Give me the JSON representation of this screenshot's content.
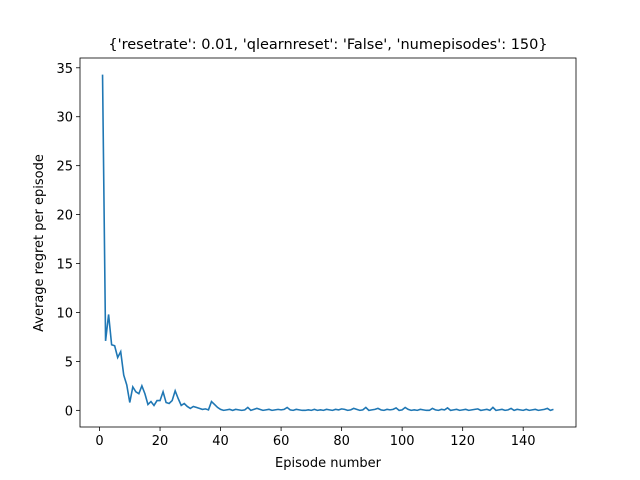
{
  "chart_data": {
    "type": "line",
    "title": "{'resetrate': 0.01, 'qlearnreset': 'False', 'numepisodes': 150}",
    "xlabel": "Episode number",
    "ylabel": "Average regret per episode",
    "x": [
      1,
      2,
      3,
      4,
      5,
      6,
      7,
      8,
      9,
      10,
      11,
      12,
      13,
      14,
      15,
      16,
      17,
      18,
      19,
      20,
      21,
      22,
      23,
      24,
      25,
      26,
      27,
      28,
      29,
      30,
      31,
      32,
      33,
      34,
      35,
      36,
      37,
      38,
      39,
      40,
      41,
      42,
      43,
      44,
      45,
      46,
      47,
      48,
      49,
      50,
      51,
      52,
      53,
      54,
      55,
      56,
      57,
      58,
      59,
      60,
      61,
      62,
      63,
      64,
      65,
      66,
      67,
      68,
      69,
      70,
      71,
      72,
      73,
      74,
      75,
      76,
      77,
      78,
      79,
      80,
      81,
      82,
      83,
      84,
      85,
      86,
      87,
      88,
      89,
      90,
      91,
      92,
      93,
      94,
      95,
      96,
      97,
      98,
      99,
      100,
      101,
      102,
      103,
      104,
      105,
      106,
      107,
      108,
      109,
      110,
      111,
      112,
      113,
      114,
      115,
      116,
      117,
      118,
      119,
      120,
      121,
      122,
      123,
      124,
      125,
      126,
      127,
      128,
      129,
      130,
      131,
      132,
      133,
      134,
      135,
      136,
      137,
      138,
      139,
      140,
      141,
      142,
      143,
      144,
      145,
      146,
      147,
      148,
      149,
      150
    ],
    "series": [
      {
        "name": "regret",
        "color": "#1f77b4",
        "values": [
          34.3,
          7.1,
          9.8,
          6.7,
          6.6,
          5.4,
          6.0,
          3.6,
          2.6,
          0.8,
          2.4,
          1.9,
          1.7,
          2.5,
          1.7,
          0.6,
          0.9,
          0.5,
          1.0,
          1.0,
          1.9,
          0.8,
          0.7,
          1.0,
          2.0,
          1.2,
          0.5,
          0.7,
          0.4,
          0.2,
          0.4,
          0.3,
          0.2,
          0.1,
          0.15,
          0.05,
          0.9,
          0.6,
          0.3,
          0.1,
          0.0,
          0.05,
          0.1,
          0.0,
          0.1,
          0.05,
          0.0,
          0.05,
          0.3,
          0.0,
          0.1,
          0.2,
          0.1,
          0.0,
          0.05,
          0.1,
          0.0,
          0.05,
          0.1,
          0.05,
          0.1,
          0.3,
          0.05,
          0.0,
          0.1,
          0.05,
          0.0,
          0.0,
          0.05,
          0.0,
          0.1,
          0.0,
          0.05,
          0.0,
          0.1,
          0.05,
          0.0,
          0.1,
          0.05,
          0.15,
          0.1,
          0.0,
          0.05,
          0.2,
          0.1,
          0.0,
          0.05,
          0.3,
          0.0,
          0.05,
          0.1,
          0.2,
          0.05,
          0.0,
          0.1,
          0.05,
          0.1,
          0.25,
          0.0,
          0.05,
          0.3,
          0.1,
          0.0,
          0.05,
          0.0,
          0.1,
          0.05,
          0.0,
          0.0,
          0.2,
          0.05,
          0.0,
          0.1,
          0.05,
          0.25,
          0.0,
          0.05,
          0.1,
          0.0,
          0.05,
          0.1,
          0.0,
          0.05,
          0.1,
          0.15,
          0.0,
          0.05,
          0.1,
          0.0,
          0.3,
          0.0,
          0.05,
          0.1,
          0.0,
          0.05,
          0.2,
          0.0,
          0.1,
          0.05,
          0.0,
          0.1,
          0.0,
          0.05,
          0.1,
          0.0,
          0.05,
          0.1,
          0.2,
          0.0,
          0.1
        ]
      }
    ],
    "xlim": [
      -6.45,
      157.45
    ],
    "xticks": [
      0,
      20,
      40,
      60,
      80,
      100,
      120,
      140
    ],
    "ylim": [
      -1.7,
      36.0
    ],
    "yticks": [
      0,
      5,
      10,
      15,
      20,
      25,
      30,
      35
    ]
  }
}
